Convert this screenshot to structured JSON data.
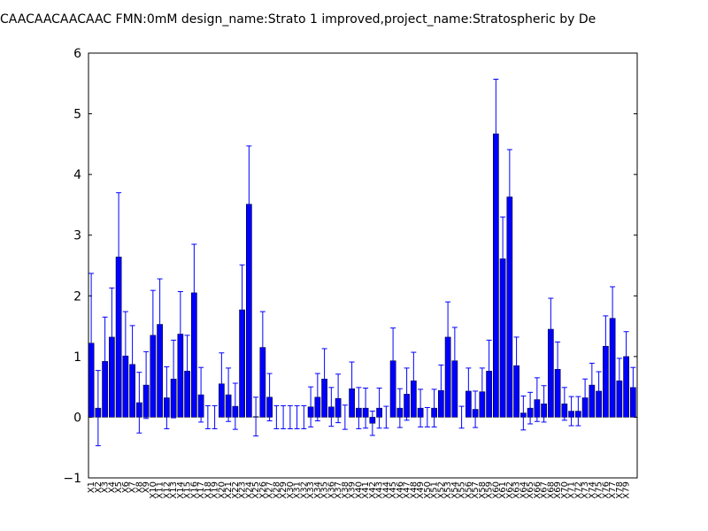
{
  "chart_data": {
    "type": "bar",
    "title": "CAACAACAACAAC  FMN:0mM  design_name:Strato 1 improved,project_name:Stratospheric by De",
    "categories": [
      "X1",
      "X2",
      "X3",
      "X4",
      "X5",
      "X6",
      "X7",
      "X8",
      "X9",
      "X10",
      "X11",
      "X12",
      "X13",
      "X14",
      "X15",
      "X16",
      "X17",
      "X18",
      "X19",
      "X20",
      "X21",
      "X22",
      "X23",
      "X24",
      "X25",
      "X26",
      "X27",
      "X28",
      "X29",
      "X30",
      "X31",
      "X32",
      "X33",
      "X34",
      "X35",
      "X36",
      "X37",
      "X38",
      "X39",
      "X40",
      "X41",
      "X42",
      "X43",
      "X44",
      "X45",
      "X46",
      "X47",
      "X48",
      "X49",
      "X50",
      "X51",
      "X52",
      "X53",
      "X54",
      "X55",
      "X56",
      "X57",
      "X58",
      "X59",
      "X60",
      "X61",
      "X62",
      "X63",
      "X64",
      "X65",
      "X66",
      "X67",
      "X68",
      "X69",
      "X70",
      "X71",
      "X72",
      "X73",
      "X74",
      "X75",
      "X76",
      "X77",
      "X78",
      "X79",
      null
    ],
    "values": [
      1.22,
      0.15,
      0.92,
      1.32,
      2.64,
      1.01,
      0.87,
      0.24,
      0.53,
      1.35,
      1.53,
      0.32,
      0.63,
      1.37,
      0.76,
      2.05,
      0.37,
      0.0,
      0.0,
      0.55,
      0.37,
      0.18,
      1.77,
      3.51,
      0.01,
      1.15,
      0.33,
      0.0,
      0.0,
      0.0,
      0.0,
      0.0,
      0.17,
      0.33,
      0.63,
      0.17,
      0.31,
      0.0,
      0.47,
      0.15,
      0.15,
      -0.1,
      0.15,
      0.0,
      0.93,
      0.15,
      0.38,
      0.6,
      0.15,
      0.0,
      0.15,
      0.44,
      1.32,
      0.93,
      0.0,
      0.43,
      0.13,
      0.42,
      0.76,
      4.67,
      2.61,
      3.63,
      0.85,
      0.07,
      0.15,
      0.29,
      0.22,
      1.45,
      0.79,
      0.22,
      0.1,
      0.1,
      0.32,
      0.53,
      0.43,
      1.17,
      1.63,
      0.6,
      1.0,
      0.49
    ],
    "errors": [
      1.15,
      0.62,
      0.73,
      0.81,
      1.06,
      0.73,
      0.64,
      0.5,
      0.55,
      0.74,
      0.75,
      0.51,
      0.64,
      0.7,
      0.59,
      0.8,
      0.45,
      0.19,
      0.19,
      0.51,
      0.44,
      0.38,
      0.74,
      0.96,
      0.32,
      0.59,
      0.39,
      0.19,
      0.19,
      0.19,
      0.19,
      0.19,
      0.33,
      0.39,
      0.5,
      0.32,
      0.4,
      0.2,
      0.44,
      0.34,
      0.33,
      0.2,
      0.33,
      0.18,
      0.54,
      0.32,
      0.43,
      0.47,
      0.31,
      0.16,
      0.31,
      0.42,
      0.58,
      0.55,
      0.18,
      0.38,
      0.3,
      0.39,
      0.51,
      0.9,
      0.69,
      0.78,
      0.47,
      0.28,
      0.26,
      0.36,
      0.3,
      0.51,
      0.45,
      0.27,
      0.24,
      0.24,
      0.31,
      0.36,
      0.32,
      0.5,
      0.52,
      0.37,
      0.41,
      0.33
    ],
    "color": "#0000ff",
    "error_color": "#0000ff",
    "xlim": [
      0,
      80
    ],
    "ylim": [
      -1,
      6
    ],
    "yticks": [
      {
        "value": -1,
        "label": "−1"
      },
      0,
      1,
      2,
      3,
      4,
      5,
      6
    ]
  }
}
